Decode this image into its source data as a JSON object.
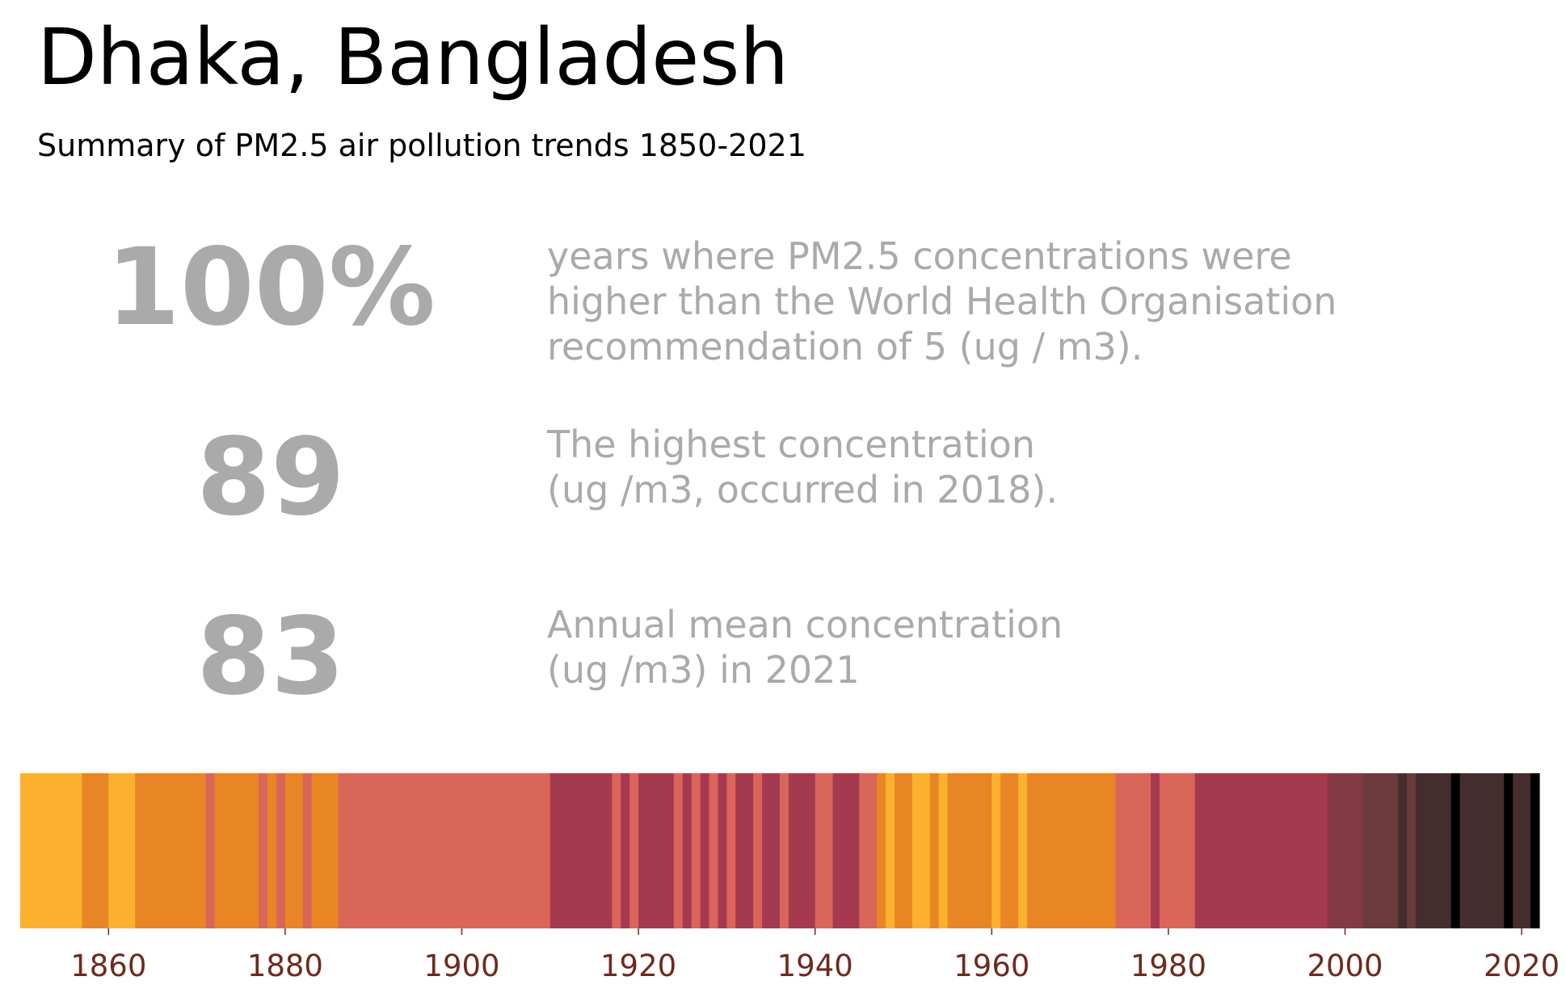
{
  "header": {
    "title": "Dhaka, Bangladesh",
    "subtitle": "Summary of PM2.5 air pollution trends 1850-2021"
  },
  "stats": [
    {
      "value": "100%",
      "lines": [
        "years where PM2.5 concentrations were",
        "higher than the World Health Organisation",
        "recommendation of 5 (ug / m3)."
      ]
    },
    {
      "value": "89",
      "lines": [
        "The highest concentration",
        "(ug /m3, occurred in 2018)."
      ]
    },
    {
      "value": "83",
      "lines": [
        "Annual mean concentration",
        "(ug /m3) in 2021"
      ]
    }
  ],
  "chart_data": {
    "type": "heatmap",
    "x_start": 1850,
    "x_end": 2021,
    "xlim": [
      1850,
      2022
    ],
    "xticks": [
      1860,
      1880,
      1900,
      1920,
      1940,
      1960,
      1980,
      2000,
      2020
    ],
    "palette": {
      "yellow": "#fbb12f",
      "orange": "#e88626",
      "coral": "#da665a",
      "crimson": "#a43a4f",
      "maroon": "#833a44",
      "brown": "#6a3a3c",
      "darkbrown": "#452d2f",
      "black": "#000000"
    },
    "segments": [
      {
        "from": 1850,
        "to": 1856,
        "color": "yellow"
      },
      {
        "from": 1857,
        "to": 1859,
        "color": "orange"
      },
      {
        "from": 1860,
        "to": 1862,
        "color": "yellow"
      },
      {
        "from": 1863,
        "to": 1870,
        "color": "orange"
      },
      {
        "from": 1871,
        "to": 1871,
        "color": "coral"
      },
      {
        "from": 1872,
        "to": 1876,
        "color": "orange"
      },
      {
        "from": 1877,
        "to": 1877,
        "color": "coral"
      },
      {
        "from": 1878,
        "to": 1878,
        "color": "orange"
      },
      {
        "from": 1879,
        "to": 1879,
        "color": "coral"
      },
      {
        "from": 1880,
        "to": 1881,
        "color": "orange"
      },
      {
        "from": 1882,
        "to": 1882,
        "color": "coral"
      },
      {
        "from": 1883,
        "to": 1885,
        "color": "orange"
      },
      {
        "from": 1886,
        "to": 1909,
        "color": "coral"
      },
      {
        "from": 1910,
        "to": 1916,
        "color": "crimson"
      },
      {
        "from": 1917,
        "to": 1917,
        "color": "coral"
      },
      {
        "from": 1918,
        "to": 1918,
        "color": "crimson"
      },
      {
        "from": 1919,
        "to": 1919,
        "color": "coral"
      },
      {
        "from": 1920,
        "to": 1923,
        "color": "crimson"
      },
      {
        "from": 1924,
        "to": 1924,
        "color": "coral"
      },
      {
        "from": 1925,
        "to": 1925,
        "color": "crimson"
      },
      {
        "from": 1926,
        "to": 1926,
        "color": "coral"
      },
      {
        "from": 1927,
        "to": 1927,
        "color": "crimson"
      },
      {
        "from": 1928,
        "to": 1928,
        "color": "coral"
      },
      {
        "from": 1929,
        "to": 1929,
        "color": "crimson"
      },
      {
        "from": 1930,
        "to": 1930,
        "color": "coral"
      },
      {
        "from": 1931,
        "to": 1932,
        "color": "crimson"
      },
      {
        "from": 1933,
        "to": 1933,
        "color": "coral"
      },
      {
        "from": 1934,
        "to": 1935,
        "color": "crimson"
      },
      {
        "from": 1936,
        "to": 1936,
        "color": "coral"
      },
      {
        "from": 1937,
        "to": 1939,
        "color": "crimson"
      },
      {
        "from": 1940,
        "to": 1941,
        "color": "coral"
      },
      {
        "from": 1942,
        "to": 1944,
        "color": "crimson"
      },
      {
        "from": 1945,
        "to": 1946,
        "color": "coral"
      },
      {
        "from": 1947,
        "to": 1947,
        "color": "orange"
      },
      {
        "from": 1948,
        "to": 1948,
        "color": "yellow"
      },
      {
        "from": 1949,
        "to": 1950,
        "color": "orange"
      },
      {
        "from": 1951,
        "to": 1952,
        "color": "yellow"
      },
      {
        "from": 1953,
        "to": 1953,
        "color": "orange"
      },
      {
        "from": 1954,
        "to": 1954,
        "color": "yellow"
      },
      {
        "from": 1955,
        "to": 1959,
        "color": "orange"
      },
      {
        "from": 1960,
        "to": 1960,
        "color": "yellow"
      },
      {
        "from": 1961,
        "to": 1962,
        "color": "orange"
      },
      {
        "from": 1963,
        "to": 1963,
        "color": "yellow"
      },
      {
        "from": 1964,
        "to": 1973,
        "color": "orange"
      },
      {
        "from": 1974,
        "to": 1977,
        "color": "coral"
      },
      {
        "from": 1978,
        "to": 1978,
        "color": "crimson"
      },
      {
        "from": 1979,
        "to": 1982,
        "color": "coral"
      },
      {
        "from": 1983,
        "to": 1997,
        "color": "crimson"
      },
      {
        "from": 1998,
        "to": 2001,
        "color": "maroon"
      },
      {
        "from": 2002,
        "to": 2005,
        "color": "brown"
      },
      {
        "from": 2006,
        "to": 2006,
        "color": "darkbrown"
      },
      {
        "from": 2007,
        "to": 2007,
        "color": "brown"
      },
      {
        "from": 2008,
        "to": 2011,
        "color": "darkbrown"
      },
      {
        "from": 2012,
        "to": 2012,
        "color": "black"
      },
      {
        "from": 2013,
        "to": 2017,
        "color": "darkbrown"
      },
      {
        "from": 2018,
        "to": 2018,
        "color": "black"
      },
      {
        "from": 2019,
        "to": 2020,
        "color": "darkbrown"
      },
      {
        "from": 2021,
        "to": 2021,
        "color": "black"
      }
    ]
  }
}
